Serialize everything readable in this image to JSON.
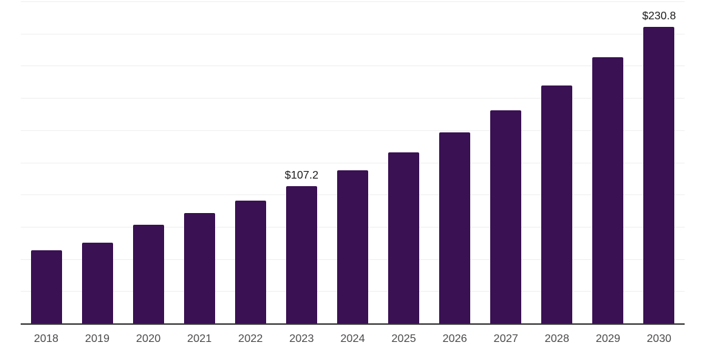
{
  "page": {
    "background_color": "#ffffff"
  },
  "chart_data": {
    "type": "bar",
    "title": "",
    "xlabel": "",
    "ylabel": "",
    "categories": [
      "2018",
      "2019",
      "2020",
      "2021",
      "2022",
      "2023",
      "2024",
      "2025",
      "2026",
      "2027",
      "2028",
      "2029",
      "2030"
    ],
    "values": [
      57.2,
      63.1,
      76.9,
      86.0,
      96.0,
      107.2,
      119.6,
      133.5,
      148.9,
      166.2,
      185.5,
      207.0,
      230.8
    ],
    "annotations": [
      {
        "category": "2023",
        "text": "$107.2"
      },
      {
        "category": "2030",
        "text": "$230.8"
      }
    ],
    "ylim": [
      0,
      250
    ],
    "grid": {
      "horizontal": true,
      "interval": 25,
      "color": "#efefef",
      "vertical": false
    },
    "legend": "none",
    "y_axis_labels_visible": false,
    "bar_color": "#3a1153",
    "axis_line_color": "#333333",
    "tick_label_color": "#4a4a4a",
    "annotation_color": "#1a1a1a"
  }
}
